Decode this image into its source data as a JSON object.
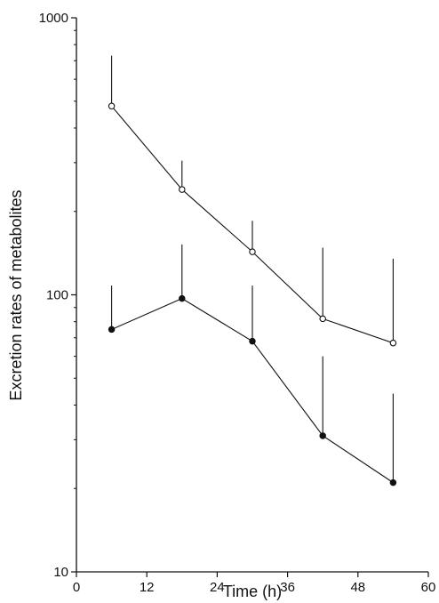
{
  "chart_data": {
    "type": "line",
    "xlabel": "Time (h)",
    "ylabel": "Excretion rates of metabolites",
    "xlim": [
      0,
      60
    ],
    "ylim": [
      10,
      1000
    ],
    "yscale": "log",
    "x_ticks": [
      0,
      12,
      24,
      36,
      48,
      60
    ],
    "x_tick_labels": [
      "0",
      "12",
      "24",
      "36",
      "48",
      "60"
    ],
    "y_ticks": [
      10,
      100,
      1000
    ],
    "y_tick_labels": [
      "10",
      "100",
      "1000"
    ],
    "grid": false,
    "legend": "none",
    "series": [
      {
        "marker": "open-circle",
        "color": "#111111",
        "x": [
          6,
          18,
          30,
          42,
          54
        ],
        "y": [
          480,
          240,
          143,
          82,
          67
        ],
        "error_upper": [
          730,
          305,
          185,
          148,
          135
        ]
      },
      {
        "marker": "filled-circle",
        "color": "#111111",
        "x": [
          6,
          18,
          30,
          42,
          54
        ],
        "y": [
          75,
          97,
          68,
          31,
          21
        ],
        "error_upper": [
          108,
          152,
          108,
          60,
          44
        ]
      }
    ]
  }
}
